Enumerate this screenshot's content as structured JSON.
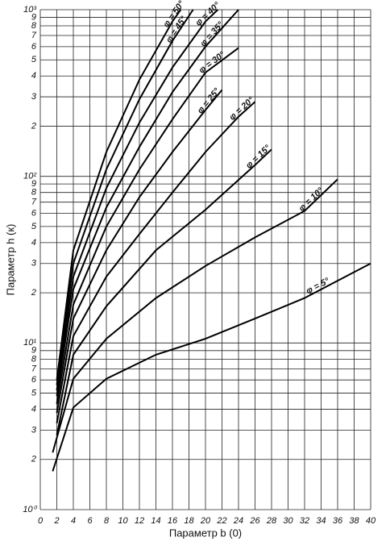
{
  "chart_data": {
    "type": "line",
    "x_label": "Параметр b (0)",
    "y_label": "Параметр h (к)",
    "xlim": [
      0,
      40
    ],
    "ylim": [
      1,
      1000
    ],
    "log_y": true,
    "grid": true,
    "xticks": [
      0,
      2,
      4,
      6,
      8,
      10,
      12,
      14,
      16,
      18,
      20,
      22,
      24,
      26,
      28,
      30,
      32,
      34,
      36,
      38,
      40
    ],
    "yticks": [
      {
        "value": 1,
        "label": "10⁰"
      },
      2,
      3,
      4,
      5,
      6,
      7,
      8,
      9,
      {
        "value": 10,
        "label": "10¹"
      },
      {
        "value": 20,
        "label": "2"
      },
      {
        "value": 30,
        "label": "3"
      },
      {
        "value": 40,
        "label": "4"
      },
      {
        "value": 50,
        "label": "5"
      },
      {
        "value": 60,
        "label": "6"
      },
      {
        "value": 70,
        "label": "7"
      },
      {
        "value": 80,
        "label": "8"
      },
      {
        "value": 90,
        "label": "9"
      },
      {
        "value": 100,
        "label": "10²"
      },
      {
        "value": 200,
        "label": "2"
      },
      {
        "value": 300,
        "label": "3"
      },
      {
        "value": 400,
        "label": "4"
      },
      {
        "value": 500,
        "label": "5"
      },
      {
        "value": 600,
        "label": "6"
      },
      {
        "value": 700,
        "label": "7"
      },
      {
        "value": 800,
        "label": "8"
      },
      {
        "value": 900,
        "label": "9"
      },
      {
        "value": 1000,
        "label": "10³"
      }
    ],
    "series": [
      {
        "name": "φ = 5°",
        "color": "#000000",
        "x": [
          1.5,
          4,
          8,
          14,
          20,
          26,
          32,
          40
        ],
        "values": [
          1.7,
          4.1,
          6.1,
          8.5,
          10.6,
          14,
          18.6,
          30
        ]
      },
      {
        "name": "φ = 10°",
        "color": "#000000",
        "x": [
          1.5,
          4,
          8,
          14,
          20,
          26,
          32,
          36
        ],
        "values": [
          2.2,
          6.1,
          10.6,
          18.6,
          29,
          43,
          62,
          96
        ]
      },
      {
        "name": "φ = 15°",
        "color": "#000000",
        "x": [
          2,
          4,
          8,
          14,
          20,
          26,
          28
        ],
        "values": [
          2.8,
          8.5,
          16.6,
          36,
          63,
          117,
          145
        ]
      },
      {
        "name": "φ = 20°",
        "color": "#000000",
        "x": [
          2,
          4,
          8,
          12,
          16,
          20,
          24,
          26
        ],
        "values": [
          3.3,
          11,
          25,
          45,
          80,
          140,
          228,
          280
        ]
      },
      {
        "name": "φ = 25°",
        "color": "#000000",
        "x": [
          2,
          4,
          8,
          12,
          16,
          20,
          22
        ],
        "values": [
          3.8,
          14,
          36,
          75,
          140,
          250,
          330
        ]
      },
      {
        "name": "φ = 30°",
        "color": "#000000",
        "x": [
          2,
          4,
          8,
          12,
          16,
          20,
          24
        ],
        "values": [
          4.3,
          17,
          50,
          110,
          220,
          420,
          590
        ]
      },
      {
        "name": "φ = 35°",
        "color": "#000000",
        "x": [
          2,
          4,
          8,
          12,
          16,
          20,
          24
        ],
        "values": [
          4.8,
          21,
          65,
          150,
          320,
          600,
          1000
        ]
      },
      {
        "name": "φ = 40°",
        "color": "#000000",
        "x": [
          2,
          4,
          8,
          12,
          16,
          20,
          21.5
        ],
        "values": [
          5.2,
          25,
          85,
          210,
          450,
          850,
          1000
        ]
      },
      {
        "name": "φ = 45°",
        "color": "#000000",
        "x": [
          2,
          4,
          8,
          12,
          16,
          18.5
        ],
        "values": [
          5.6,
          30,
          110,
          290,
          650,
          1000
        ]
      },
      {
        "name": "φ = 50°",
        "color": "#000000",
        "x": [
          2,
          4,
          8,
          12,
          16,
          17
        ],
        "values": [
          6,
          36,
          140,
          380,
          850,
          1000
        ]
      }
    ]
  }
}
